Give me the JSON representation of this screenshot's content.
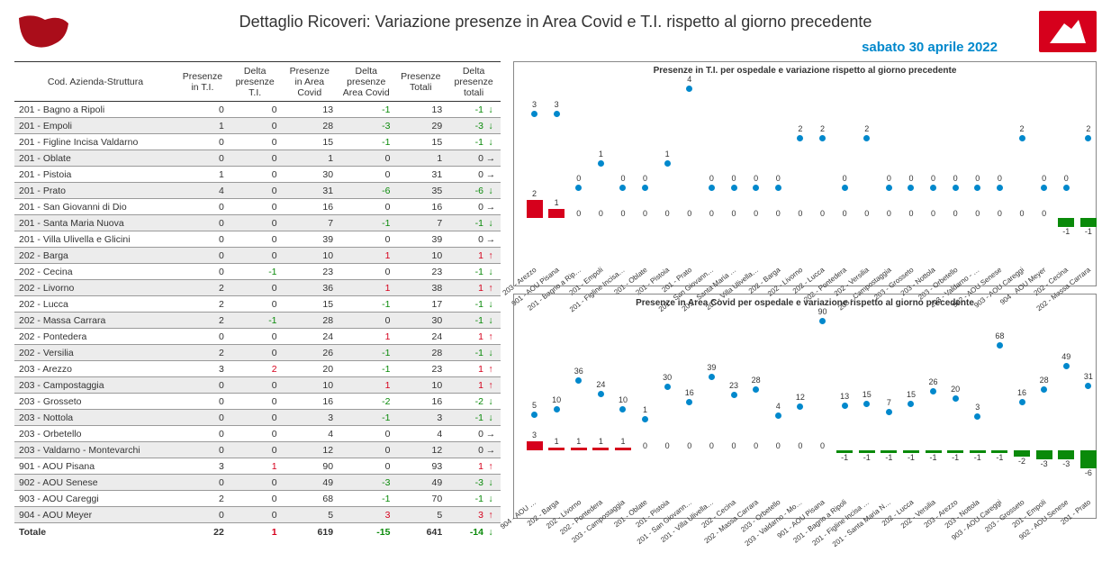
{
  "title": "Dettaglio Ricoveri: Variazione presenze in Area Covid e T.I. rispetto al giorno precedente",
  "subtitle": "sabato 30 aprile 2022",
  "colors": {
    "accent_red": "#d6001c",
    "accent_green": "#0a8a0a",
    "brand_blue": "#0088cc",
    "dot": "#0088cc",
    "bar_pos": "#d6001c",
    "bar_neg": "#0a8a0a",
    "stripe": "#ececec",
    "rule": "#9a9a9a"
  },
  "table": {
    "headers": [
      "Cod. Azienda-Struttura",
      "Presenze in T.I.",
      "Delta presenze T.I.",
      "Presenze in Area Covid",
      "Delta presenze Area Covid",
      "Presenze Totali",
      "Delta presenze totali"
    ],
    "rows": [
      {
        "name": "201 - Bagno a Ripoli",
        "ti": 0,
        "dti": 0,
        "covid": 13,
        "dcov": -1,
        "tot": 13,
        "dtot": -1
      },
      {
        "name": "201 - Empoli",
        "ti": 1,
        "dti": 0,
        "covid": 28,
        "dcov": -3,
        "tot": 29,
        "dtot": -3
      },
      {
        "name": "201 - Figline Incisa Valdarno",
        "ti": 0,
        "dti": 0,
        "covid": 15,
        "dcov": -1,
        "tot": 15,
        "dtot": -1
      },
      {
        "name": "201 - Oblate",
        "ti": 0,
        "dti": 0,
        "covid": 1,
        "dcov": 0,
        "tot": 1,
        "dtot": 0
      },
      {
        "name": "201 - Pistoia",
        "ti": 1,
        "dti": 0,
        "covid": 30,
        "dcov": 0,
        "tot": 31,
        "dtot": 0
      },
      {
        "name": "201 - Prato",
        "ti": 4,
        "dti": 0,
        "covid": 31,
        "dcov": -6,
        "tot": 35,
        "dtot": -6
      },
      {
        "name": "201 - San Giovanni di Dio",
        "ti": 0,
        "dti": 0,
        "covid": 16,
        "dcov": 0,
        "tot": 16,
        "dtot": 0
      },
      {
        "name": "201 - Santa Maria Nuova",
        "ti": 0,
        "dti": 0,
        "covid": 7,
        "dcov": -1,
        "tot": 7,
        "dtot": -1
      },
      {
        "name": "201 - Villa Ulivella e Glicini",
        "ti": 0,
        "dti": 0,
        "covid": 39,
        "dcov": 0,
        "tot": 39,
        "dtot": 0
      },
      {
        "name": "202 - Barga",
        "ti": 0,
        "dti": 0,
        "covid": 10,
        "dcov": 1,
        "tot": 10,
        "dtot": 1
      },
      {
        "name": "202 - Cecina",
        "ti": 0,
        "dti": -1,
        "covid": 23,
        "dcov": 0,
        "tot": 23,
        "dtot": -1
      },
      {
        "name": "202 - Livorno",
        "ti": 2,
        "dti": 0,
        "covid": 36,
        "dcov": 1,
        "tot": 38,
        "dtot": 1
      },
      {
        "name": "202 - Lucca",
        "ti": 2,
        "dti": 0,
        "covid": 15,
        "dcov": -1,
        "tot": 17,
        "dtot": -1
      },
      {
        "name": "202 - Massa Carrara",
        "ti": 2,
        "dti": -1,
        "covid": 28,
        "dcov": 0,
        "tot": 30,
        "dtot": -1
      },
      {
        "name": "202 - Pontedera",
        "ti": 0,
        "dti": 0,
        "covid": 24,
        "dcov": 1,
        "tot": 24,
        "dtot": 1
      },
      {
        "name": "202 - Versilia",
        "ti": 2,
        "dti": 0,
        "covid": 26,
        "dcov": -1,
        "tot": 28,
        "dtot": -1
      },
      {
        "name": "203 - Arezzo",
        "ti": 3,
        "dti": 2,
        "covid": 20,
        "dcov": -1,
        "tot": 23,
        "dtot": 1
      },
      {
        "name": "203 - Campostaggia",
        "ti": 0,
        "dti": 0,
        "covid": 10,
        "dcov": 1,
        "tot": 10,
        "dtot": 1
      },
      {
        "name": "203 - Grosseto",
        "ti": 0,
        "dti": 0,
        "covid": 16,
        "dcov": -2,
        "tot": 16,
        "dtot": -2
      },
      {
        "name": "203 - Nottola",
        "ti": 0,
        "dti": 0,
        "covid": 3,
        "dcov": -1,
        "tot": 3,
        "dtot": -1
      },
      {
        "name": "203 - Orbetello",
        "ti": 0,
        "dti": 0,
        "covid": 4,
        "dcov": 0,
        "tot": 4,
        "dtot": 0
      },
      {
        "name": "203 - Valdarno - Montevarchi",
        "ti": 0,
        "dti": 0,
        "covid": 12,
        "dcov": 0,
        "tot": 12,
        "dtot": 0
      },
      {
        "name": "901 - AOU Pisana",
        "ti": 3,
        "dti": 1,
        "covid": 90,
        "dcov": 0,
        "tot": 93,
        "dtot": 1
      },
      {
        "name": "902 - AOU Senese",
        "ti": 0,
        "dti": 0,
        "covid": 49,
        "dcov": -3,
        "tot": 49,
        "dtot": -3
      },
      {
        "name": "903 - AOU Careggi",
        "ti": 2,
        "dti": 0,
        "covid": 68,
        "dcov": -1,
        "tot": 70,
        "dtot": -1
      },
      {
        "name": "904 - AOU Meyer",
        "ti": 0,
        "dti": 0,
        "covid": 5,
        "dcov": 3,
        "tot": 5,
        "dtot": 3
      }
    ],
    "total": {
      "name": "Totale",
      "ti": 22,
      "dti": 1,
      "covid": 619,
      "dcov": -15,
      "tot": 641,
      "dtot": -14
    }
  },
  "chart_ti": {
    "title": "Presenze in T.I. per ospedale e variazione rispetto al giorno precedente",
    "max_value": 4,
    "value_fontsize": 9,
    "label_fontsize": 8,
    "dot_color": "#0088cc",
    "bar_pos_color": "#d6001c",
    "bar_neg_color": "#0a8a0a",
    "items": [
      {
        "label": "203 - Arezzo",
        "value": 3,
        "delta": 2
      },
      {
        "label": "901 - AOU Pisana",
        "value": 3,
        "delta": 1
      },
      {
        "label": "201 - Bagno a Rip…",
        "value": 0,
        "delta": 0
      },
      {
        "label": "201 - Empoli",
        "value": 1,
        "delta": 0
      },
      {
        "label": "201 - Figline Incisa…",
        "value": 0,
        "delta": 0
      },
      {
        "label": "201 - Oblate",
        "value": 0,
        "delta": 0
      },
      {
        "label": "201 - Pistoia",
        "value": 1,
        "delta": 0
      },
      {
        "label": "201 - Prato",
        "value": 4,
        "delta": 0
      },
      {
        "label": "201 - San Giovann…",
        "value": 0,
        "delta": 0
      },
      {
        "label": "201 - Santa Maria …",
        "value": 0,
        "delta": 0
      },
      {
        "label": "201 - Villa Ulivella…",
        "value": 0,
        "delta": 0
      },
      {
        "label": "202 - Barga",
        "value": 0,
        "delta": 0
      },
      {
        "label": "202 - Livorno",
        "value": 2,
        "delta": 0
      },
      {
        "label": "202 - Lucca",
        "value": 2,
        "delta": 0
      },
      {
        "label": "202 - Pontedera",
        "value": 0,
        "delta": 0
      },
      {
        "label": "202 - Versilia",
        "value": 2,
        "delta": 0
      },
      {
        "label": "203 - Campostaggia",
        "value": 0,
        "delta": 0
      },
      {
        "label": "203 - Grosseto",
        "value": 0,
        "delta": 0
      },
      {
        "label": "203 - Nottola",
        "value": 0,
        "delta": 0
      },
      {
        "label": "203 - Orbetello",
        "value": 0,
        "delta": 0
      },
      {
        "label": "203 - Valdarno - …",
        "value": 0,
        "delta": 0
      },
      {
        "label": "902 - AOU Senese",
        "value": 0,
        "delta": 0
      },
      {
        "label": "903 - AOU Careggi",
        "value": 2,
        "delta": 0
      },
      {
        "label": "904 - AOU Meyer",
        "value": 0,
        "delta": 0
      },
      {
        "label": "202 - Cecina",
        "value": 0,
        "delta": -1
      },
      {
        "label": "202 - Massa Carrara",
        "value": 2,
        "delta": -1
      }
    ]
  },
  "chart_covid": {
    "title": "Presenze in Area Covid per ospedale e variazione rispetto al giorno precedente",
    "max_value": 90,
    "value_fontsize": 9,
    "label_fontsize": 8,
    "dot_color": "#0088cc",
    "bar_pos_color": "#d6001c",
    "bar_neg_color": "#0a8a0a",
    "items": [
      {
        "label": "904 - AOU …",
        "value": 5,
        "delta": 3
      },
      {
        "label": "202 - Barga",
        "value": 10,
        "delta": 1
      },
      {
        "label": "202 - Livorno",
        "value": 36,
        "delta": 1
      },
      {
        "label": "202 - Pontedera",
        "value": 24,
        "delta": 1
      },
      {
        "label": "203 - Campostaggia",
        "value": 10,
        "delta": 1
      },
      {
        "label": "201 - Oblate",
        "value": 1,
        "delta": 0
      },
      {
        "label": "201 - Pistoia",
        "value": 30,
        "delta": 0
      },
      {
        "label": "201 - San Giovann…",
        "value": 16,
        "delta": 0
      },
      {
        "label": "201 - Villa Ulivella…",
        "value": 39,
        "delta": 0
      },
      {
        "label": "202 - Cecina",
        "value": 23,
        "delta": 0
      },
      {
        "label": "202 - Massa Carrara",
        "value": 28,
        "delta": 0
      },
      {
        "label": "203 - Orbetello",
        "value": 4,
        "delta": 0
      },
      {
        "label": "203 - Valdarno - Mo…",
        "value": 12,
        "delta": 0
      },
      {
        "label": "901 - AOU Pisana",
        "value": 90,
        "delta": 0
      },
      {
        "label": "201 - Bagno a Ripoli",
        "value": 13,
        "delta": -1
      },
      {
        "label": "201 - Figline Incisa …",
        "value": 15,
        "delta": -1
      },
      {
        "label": "201 - Santa Maria N…",
        "value": 7,
        "delta": -1
      },
      {
        "label": "202 - Lucca",
        "value": 15,
        "delta": -1
      },
      {
        "label": "202 - Versilia",
        "value": 26,
        "delta": -1
      },
      {
        "label": "203 - Arezzo",
        "value": 20,
        "delta": -1
      },
      {
        "label": "203 - Nottola",
        "value": 3,
        "delta": -1
      },
      {
        "label": "903 - AOU Careggi",
        "value": 68,
        "delta": -1
      },
      {
        "label": "203 - Grosseto",
        "value": 16,
        "delta": -2
      },
      {
        "label": "201 - Empoli",
        "value": 28,
        "delta": -3
      },
      {
        "label": "902 - AOU Senese",
        "value": 49,
        "delta": -3
      },
      {
        "label": "201 - Prato",
        "value": 31,
        "delta": -6
      }
    ]
  }
}
